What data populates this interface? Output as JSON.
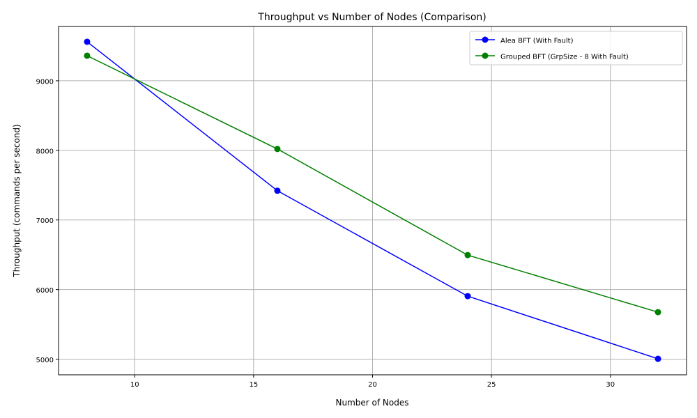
{
  "chart_data": {
    "type": "line",
    "title": "Throughput vs Number of Nodes (Comparison)",
    "xlabel": "Number of Nodes",
    "ylabel": "Throughput (commands per second)",
    "xlim": [
      6.8,
      33.2
    ],
    "ylim": [
      4775,
      9780
    ],
    "xticks": [
      10,
      15,
      20,
      25,
      30
    ],
    "yticks": [
      5000,
      6000,
      7000,
      8000,
      9000
    ],
    "grid": true,
    "legend_position": "top-right",
    "x": [
      8,
      16,
      24,
      32
    ],
    "series": [
      {
        "name": "Alea BFT (With Fault)",
        "color": "#0000ff",
        "marker": "circle",
        "values": [
          9560,
          7420,
          5905,
          5005
        ]
      },
      {
        "name": "Grouped BFT (GrpSize - 8 With Fault)",
        "color": "#008000",
        "marker": "circle",
        "values": [
          9360,
          8020,
          6495,
          5675
        ]
      }
    ]
  }
}
